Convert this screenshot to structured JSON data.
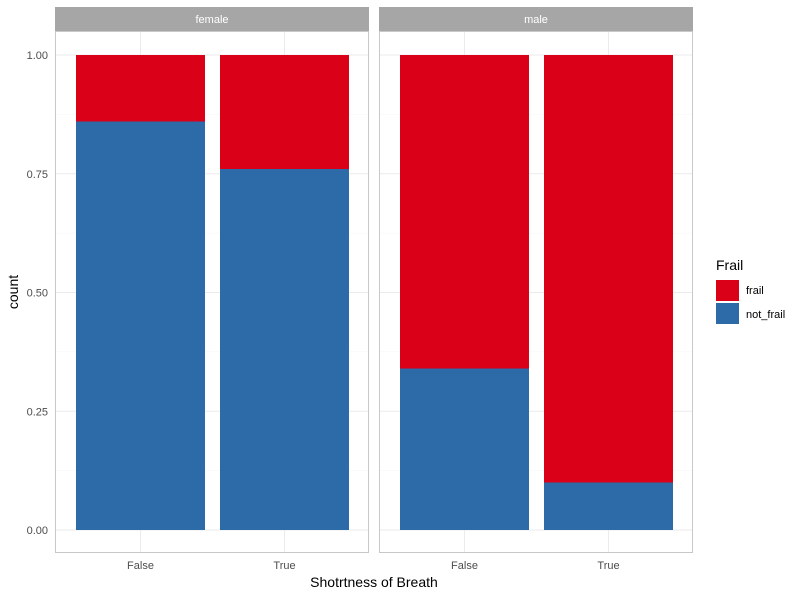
{
  "chart_data": {
    "type": "bar",
    "stacking": "fill",
    "xlabel": "Shotrtness of Breath",
    "ylabel": "count",
    "ylim": [
      0,
      1
    ],
    "yticks": [
      "0.00",
      "0.25",
      "0.50",
      "0.75",
      "1.00"
    ],
    "ytick_values": [
      0,
      0.25,
      0.5,
      0.75,
      1.0
    ],
    "categories": [
      "False",
      "True"
    ],
    "grid": true,
    "facets": [
      {
        "label": "female",
        "series": [
          {
            "name": "not_frail",
            "values": [
              0.86,
              0.76
            ]
          },
          {
            "name": "frail",
            "values": [
              0.14,
              0.24
            ]
          }
        ]
      },
      {
        "label": "male",
        "series": [
          {
            "name": "not_frail",
            "values": [
              0.34,
              0.1
            ]
          },
          {
            "name": "frail",
            "values": [
              0.66,
              0.9
            ]
          }
        ]
      }
    ],
    "legend": {
      "title": "Frail",
      "placement": "right",
      "items": [
        {
          "label": "frail",
          "color": "#da0018"
        },
        {
          "label": "not_frail",
          "color": "#2c6aa8"
        }
      ]
    },
    "colors": {
      "frail": "#da0018",
      "not_frail": "#2c6aa8",
      "strip": "#a6a6a6",
      "grid_major": "#ebebeb",
      "grid_minor": "#f4f4f4",
      "panel_border": "#c8c8c8"
    }
  }
}
